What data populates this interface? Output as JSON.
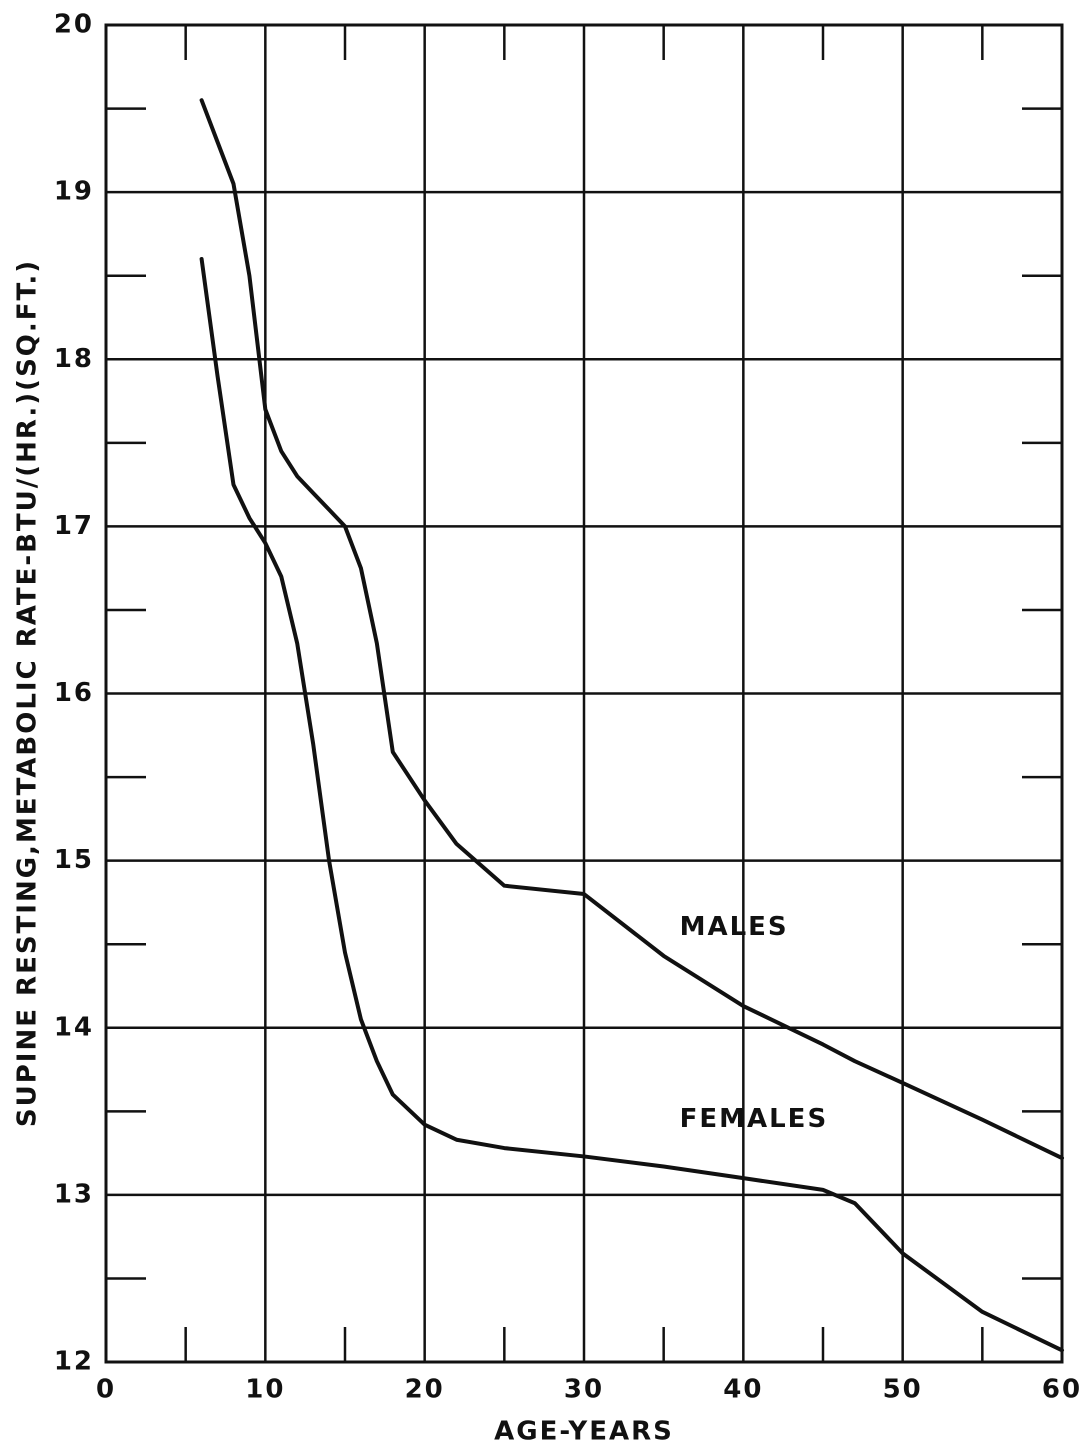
{
  "chart_data": {
    "type": "line",
    "xlabel": "AGE-YEARS",
    "ylabel": "SUPINE RESTING,METABOLIC RATE-BTU/(HR.)(SQ.FT.)",
    "x": [
      6,
      7,
      8,
      9,
      10,
      11,
      12,
      13,
      14,
      15,
      16,
      17,
      18,
      20,
      22,
      25,
      30,
      35,
      40,
      45,
      47,
      50,
      55,
      60
    ],
    "series": [
      {
        "name": "MALES",
        "color": "#111111",
        "values": [
          19.55,
          19.3,
          19.05,
          18.5,
          17.7,
          17.45,
          17.3,
          17.2,
          17.1,
          17.0,
          16.75,
          16.3,
          15.65,
          15.36,
          15.1,
          14.85,
          14.8,
          14.43,
          14.13,
          13.9,
          13.8,
          13.67,
          13.45,
          13.22
        ]
      },
      {
        "name": "FEMALES",
        "color": "#111111",
        "values": [
          18.6,
          17.9,
          17.25,
          17.05,
          16.9,
          16.7,
          16.3,
          15.7,
          15.0,
          14.45,
          14.05,
          13.8,
          13.6,
          13.42,
          13.33,
          13.28,
          13.23,
          13.17,
          13.1,
          13.03,
          12.95,
          12.65,
          12.3,
          12.07
        ]
      }
    ],
    "xlim": [
      0,
      60
    ],
    "xticks": [
      0,
      10,
      20,
      30,
      40,
      50,
      60
    ],
    "ylim": [
      12,
      20
    ],
    "yticks": [
      12,
      13,
      14,
      15,
      16,
      17,
      18,
      19,
      20
    ],
    "grid": true
  }
}
